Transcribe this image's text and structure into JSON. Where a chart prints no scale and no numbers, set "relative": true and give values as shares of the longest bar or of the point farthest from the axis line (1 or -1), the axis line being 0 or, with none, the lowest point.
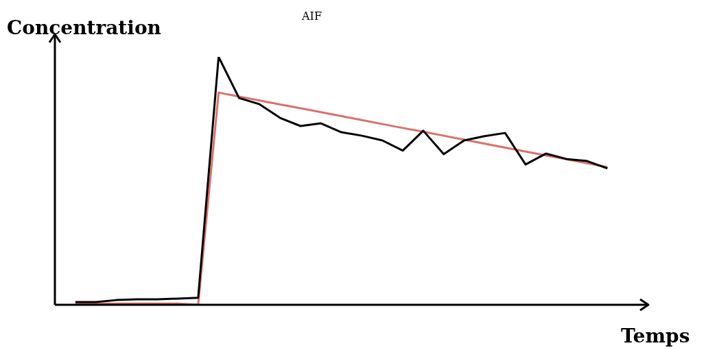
{
  "chart_data": {
    "type": "line",
    "relative": true,
    "title": "AIF",
    "xlabel": "Temps",
    "ylabel": "Concentration",
    "grid": false,
    "marker": "none",
    "line_style": "solid",
    "categories": [
      null,
      null,
      null,
      null,
      null,
      null,
      null,
      null,
      null,
      null,
      null,
      null,
      null,
      null,
      null,
      null,
      null,
      null,
      null,
      null,
      null,
      null,
      null,
      null,
      null,
      null,
      null
    ],
    "series": [
      {
        "color": "#d9706a",
        "values": [
          0.005,
          0.005,
          0.005,
          0.005,
          0.005,
          0.005,
          0,
          0.856,
          0.84,
          0.824,
          0.808,
          0.793,
          0.777,
          0.761,
          0.745,
          0.729,
          0.713,
          0.698,
          0.682,
          0.666,
          0.65,
          0.634,
          0.618,
          0.602,
          0.587,
          0.571,
          0.555
        ]
      },
      {
        "color": "#000000",
        "values": [
          0.011,
          0.011,
          0.019,
          0.022,
          0.022,
          0.025,
          0.028,
          1.0,
          0.834,
          0.809,
          0.754,
          0.721,
          0.732,
          0.696,
          0.682,
          0.663,
          0.622,
          0.702,
          0.608,
          0.663,
          0.68,
          0.693,
          0.566,
          0.61,
          0.588,
          0.58,
          0.55
        ]
      }
    ]
  }
}
